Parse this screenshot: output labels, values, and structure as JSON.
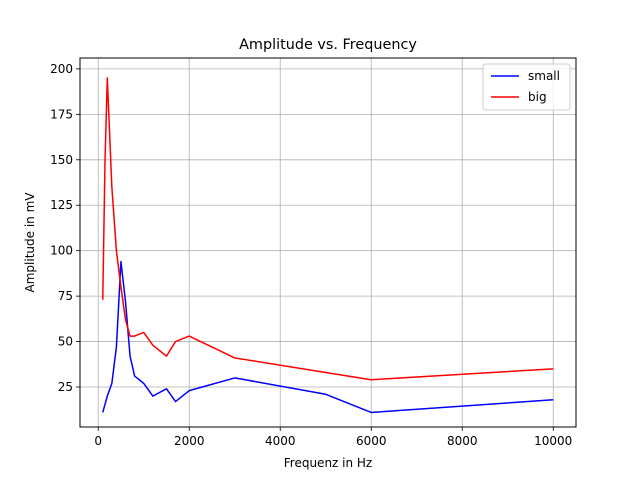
{
  "chart_data": {
    "type": "line",
    "title": "Amplitude vs. Frequency",
    "xlabel": "Frequenz in Hz",
    "ylabel": "Amplitude in mV",
    "xlim": [
      -400,
      10500
    ],
    "ylim": [
      3,
      206
    ],
    "xticks": [
      0,
      2000,
      4000,
      6000,
      8000,
      10000
    ],
    "yticks": [
      25,
      50,
      75,
      100,
      125,
      150,
      175,
      200
    ],
    "grid": true,
    "legend_position": "top-right",
    "series": [
      {
        "name": "small",
        "color": "#0000ff",
        "x": [
          100,
          200,
          300,
          400,
          500,
          600,
          700,
          800,
          1000,
          1200,
          1500,
          1700,
          2000,
          3000,
          5000,
          6000,
          10000
        ],
        "y": [
          11,
          20,
          27,
          47,
          94,
          72,
          42,
          31,
          27,
          20,
          24,
          17,
          23,
          30,
          21,
          11,
          18
        ]
      },
      {
        "name": "big",
        "color": "#ff0000",
        "x": [
          100,
          150,
          200,
          250,
          300,
          400,
          500,
          600,
          700,
          800,
          1000,
          1200,
          1500,
          1700,
          2000,
          3000,
          5000,
          6000,
          10000
        ],
        "y": [
          73,
          150,
          195,
          165,
          135,
          100,
          80,
          62,
          53,
          53,
          55,
          48,
          42,
          50,
          53,
          41,
          33,
          29,
          35
        ]
      }
    ]
  }
}
